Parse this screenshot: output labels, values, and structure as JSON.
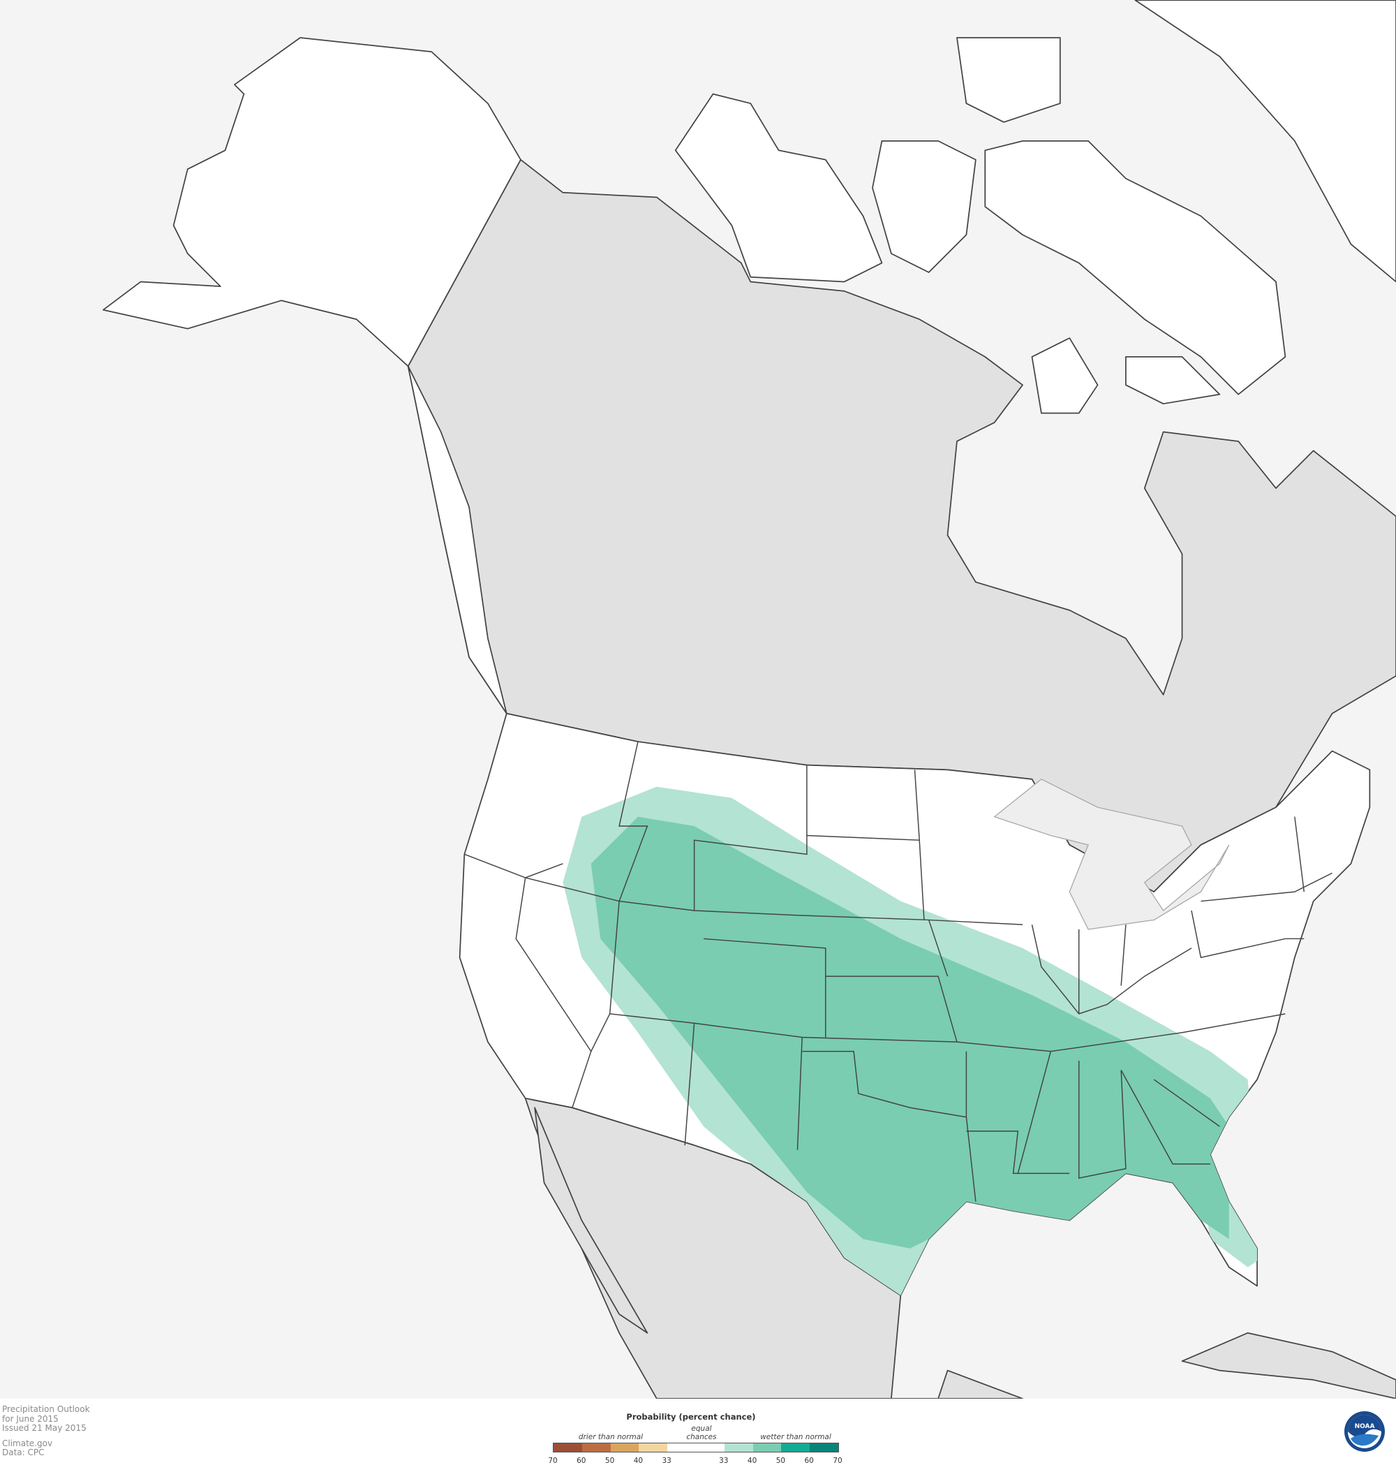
{
  "info": {
    "title": "Precipitation Outlook",
    "period": "for June 2015",
    "issued": "Issued 21 May 2015",
    "source": "Climate.gov",
    "data": "Data: CPC"
  },
  "legend": {
    "title": "Probability (percent chance)",
    "drier_label": "drier than normal",
    "equal_label_1": "equal",
    "equal_label_2": "chances",
    "wetter_label": "wetter than normal",
    "ticks": [
      "70",
      "60",
      "50",
      "40",
      "33",
      "33",
      "40",
      "50",
      "60",
      "70"
    ],
    "colors": [
      "#9c4e37",
      "#bd6c42",
      "#d9a55e",
      "#f1d6a0",
      "#ffffff",
      "#b3e3d3",
      "#7acdb1",
      "#12ab94",
      "#088578"
    ]
  },
  "map": {
    "land_colors": {
      "other": "#e1e1e1",
      "us": "#ffffff",
      "ocean": "#f4f4f4",
      "lakes": "#eeeeee"
    },
    "outlook_areas": [
      {
        "category": "wetter than normal 33-40",
        "color": "#b3e3d3"
      },
      {
        "category": "wetter than normal 40-50",
        "color": "#7acdb1"
      }
    ]
  },
  "logo": "NOAA"
}
